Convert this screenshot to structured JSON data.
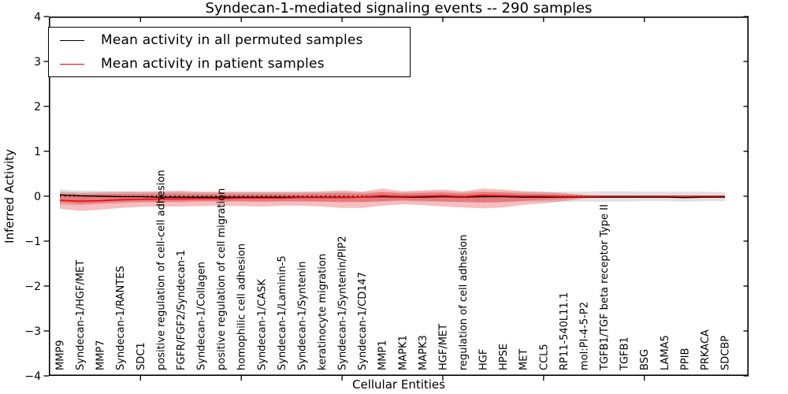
{
  "figure": {
    "title": "Syndecan-1-mediated signaling events -- 290 samples",
    "xlabel": "Cellular Entities",
    "ylabel": "Inferred Activity"
  },
  "legend": {
    "items": [
      {
        "label": "Mean activity in all permuted samples",
        "color": "#000000"
      },
      {
        "label": "Mean activity in patient samples",
        "color": "#ff0000"
      }
    ]
  },
  "chart_data": {
    "type": "line",
    "title": "Syndecan-1-mediated signaling events -- 290 samples",
    "xlabel": "Cellular Entities",
    "ylabel": "Inferred Activity",
    "ylim": [
      -4,
      4
    ],
    "yticks": [
      4,
      3,
      2,
      1,
      0,
      -1,
      -2,
      -3,
      -4
    ],
    "x_major_tick_indices": [
      4,
      9,
      14,
      19,
      24,
      29
    ],
    "grid": false,
    "legend_position": "upper left",
    "zero_line_style": "dotted",
    "categories": [
      "MMP9",
      "Syndecan-1/HGF/MET",
      "MMP7",
      "Syndecan-1/RANTES",
      "SDC1",
      "positive regulation of cell-cell adhesion",
      "FGFR/FGF2/Syndecan-1",
      "Syndecan-1/Collagen",
      "positive regulation of cell migration",
      "homophilic cell adhesion",
      "Syndecan-1/CASK",
      "Syndecan-1/Laminin-5",
      "Syndecan-1/Syntenin",
      "keratinocyte migration",
      "Syndecan-1/Syntenin/PIP2",
      "Syndecan-1/CD147",
      "MMP1",
      "MAPK1",
      "MAPK3",
      "HGF/MET",
      "regulation of cell adhesion",
      "HGF",
      "HPSE",
      "MET",
      "CCL5",
      "RP11-540L11.1",
      "mol:PI-4-5-P2",
      "TGFB1/TGF beta receptor Type II",
      "TGFB1",
      "BSG",
      "LAMA5",
      "PPIB",
      "PRKACA",
      "SDCBP"
    ],
    "series": [
      {
        "name": "Mean activity in all permuted samples",
        "color": "#000000",
        "width": 1.4,
        "values": [
          0.03,
          0.01,
          0.0,
          -0.01,
          -0.01,
          -0.02,
          -0.02,
          -0.02,
          -0.02,
          -0.02,
          -0.02,
          -0.02,
          -0.02,
          -0.02,
          -0.02,
          -0.02,
          -0.01,
          -0.02,
          -0.02,
          -0.01,
          -0.02,
          -0.01,
          -0.01,
          -0.02,
          -0.02,
          -0.02,
          -0.02,
          -0.02,
          -0.02,
          -0.02,
          -0.02,
          -0.03,
          -0.02,
          -0.02
        ]
      },
      {
        "name": "Mean activity in patient samples",
        "color": "#ff0000",
        "width": 1.6,
        "values": [
          -0.09,
          -0.11,
          -0.1,
          -0.08,
          -0.07,
          -0.06,
          -0.06,
          -0.05,
          -0.05,
          -0.04,
          -0.04,
          -0.04,
          -0.03,
          -0.03,
          -0.03,
          -0.02,
          0.01,
          -0.01,
          0.0,
          0.01,
          -0.01,
          0.02,
          0.01,
          0.0,
          0.0,
          -0.01,
          -0.01,
          0.0,
          0.0,
          0.0,
          0.0,
          0.0,
          0.0,
          0.0
        ]
      }
    ],
    "bands": [
      {
        "name": "permuted-samples-envelope",
        "color": "rgba(0,0,0,0.12)",
        "start_index": 0,
        "upper": [
          0.15,
          0.13,
          0.12,
          0.11,
          0.1,
          0.1,
          0.1,
          0.09,
          0.09,
          0.09,
          0.09,
          0.09,
          0.09,
          0.09,
          0.1,
          0.09,
          0.1,
          0.09,
          0.1,
          0.1,
          0.09,
          0.11,
          0.1,
          0.1,
          0.09,
          0.1,
          0.1,
          0.11,
          0.11,
          0.1,
          0.1,
          0.1,
          0.1,
          0.09
        ],
        "lower": [
          -0.19,
          -0.2,
          -0.18,
          -0.16,
          -0.14,
          -0.13,
          -0.13,
          -0.12,
          -0.12,
          -0.12,
          -0.12,
          -0.12,
          -0.12,
          -0.12,
          -0.13,
          -0.13,
          -0.12,
          -0.11,
          -0.12,
          -0.12,
          -0.13,
          -0.14,
          -0.13,
          -0.12,
          -0.12,
          -0.12,
          -0.12,
          -0.12,
          -0.12,
          -0.11,
          -0.11,
          -0.12,
          -0.11,
          -0.11
        ]
      },
      {
        "name": "patient-samples-envelope-outer",
        "color": "rgba(227,36,43,0.30)",
        "start_index": 0,
        "upper": [
          0.1,
          0.08,
          0.09,
          0.1,
          0.1,
          0.11,
          0.12,
          0.1,
          0.1,
          0.1,
          0.1,
          0.1,
          0.1,
          0.11,
          0.13,
          0.1,
          0.17,
          0.11,
          0.13,
          0.15,
          0.11,
          0.17,
          0.15,
          0.11,
          0.1,
          0.07,
          0.03,
          0.01
        ],
        "lower": [
          -0.28,
          -0.33,
          -0.3,
          -0.26,
          -0.24,
          -0.23,
          -0.23,
          -0.22,
          -0.21,
          -0.22,
          -0.23,
          -0.21,
          -0.21,
          -0.23,
          -0.26,
          -0.26,
          -0.21,
          -0.18,
          -0.2,
          -0.23,
          -0.25,
          -0.27,
          -0.25,
          -0.19,
          -0.16,
          -0.11,
          -0.05,
          -0.01
        ],
        "span_note": "band fades out at TGFB1/TGF beta receptor Type II"
      },
      {
        "name": "patient-samples-envelope-inner",
        "color": "rgba(227,36,43,0.33)",
        "start_index": 0,
        "upper": [
          0.05,
          0.04,
          0.05,
          0.05,
          0.05,
          0.06,
          0.06,
          0.05,
          0.05,
          0.05,
          0.05,
          0.05,
          0.05,
          0.06,
          0.07,
          0.05,
          0.09,
          0.06,
          0.07,
          0.08,
          0.06,
          0.09,
          0.08,
          0.06,
          0.05,
          0.04,
          0.02,
          0.01
        ],
        "lower": [
          -0.14,
          -0.17,
          -0.15,
          -0.13,
          -0.12,
          -0.12,
          -0.12,
          -0.11,
          -0.11,
          -0.11,
          -0.12,
          -0.11,
          -0.11,
          -0.12,
          -0.13,
          -0.13,
          -0.11,
          -0.09,
          -0.1,
          -0.12,
          -0.13,
          -0.14,
          -0.13,
          -0.1,
          -0.08,
          -0.06,
          -0.03,
          -0.01
        ]
      }
    ]
  }
}
